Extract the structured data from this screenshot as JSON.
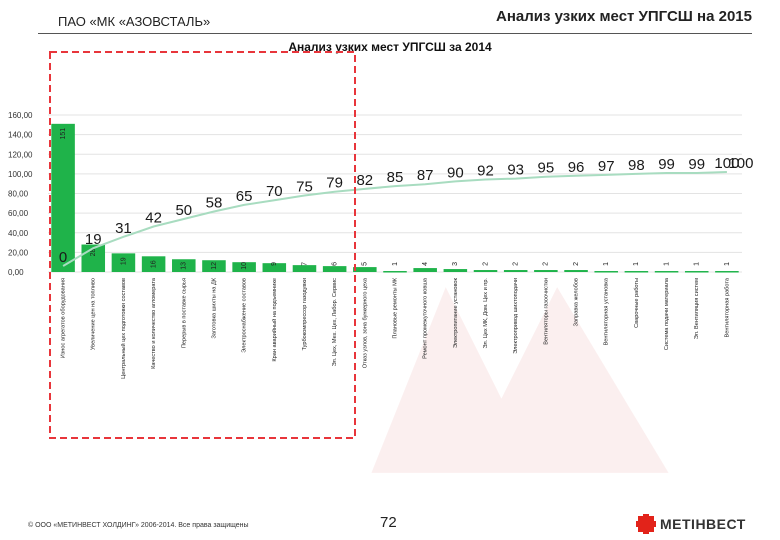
{
  "header": {
    "company": "ПАО «МК «АЗОВСТАЛЬ»",
    "title": "Анализ узких мест УПГСШ на 2015"
  },
  "footer": {
    "copyright": "© ООО «МЕТИНВЕСТ ХОЛДИНГ» 2006-2014. Все права защищены",
    "page_number": "72",
    "logo_text": "МЕТІНВЕСТ"
  },
  "colors": {
    "bar": "#1fb34a",
    "line": "#a8dcc0",
    "highlight_frame": "#e8353b"
  },
  "chart_data": {
    "type": "bar",
    "title": "Анализ узких мест УПГСШ за 2014",
    "y_ticks": [
      "0,00",
      "20,00",
      "40,00",
      "60,00",
      "80,00",
      "100,00",
      "120,00",
      "140,00",
      "160,00"
    ],
    "ylim": [
      0,
      160
    ],
    "cumulative_ylim": [
      0,
      100
    ],
    "categories": [
      "Износ агрегатов оборудования",
      "Увеличение цен на топливо",
      "Центральный цех подготовки составов",
      "Качество и количество агломерата",
      "Перерыв в поставке сырья",
      "Заготовка шихты на ДК",
      "Электроснабжение составов",
      "Кран аварийный на подъемнике",
      "Турбокомпрессор газодувки",
      "Эл. Цех, Мех. Цех, Лабор. Сервис",
      "Отказ узлов, зона бункерного цеха",
      "Плановые ремонты МК",
      "Ремонт промежуточного ковша",
      "Электропитание установок",
      "Эл. Цех МК, Дом. Цех и пр.",
      "Электропривод шихтоподачи",
      "Вентиляторы газоочистки",
      "Заправка желобов",
      "Вентиляторная установка",
      "Сварочные работы",
      "Система подачи материала",
      "Эл. Вентиляция систем",
      "Вентиляторная работа"
    ],
    "values": [
      151,
      28,
      19,
      16,
      13,
      12,
      10,
      9,
      7,
      6,
      5,
      1,
      4,
      3,
      2,
      2,
      2,
      2,
      1,
      1,
      1,
      1,
      1
    ],
    "cumulative": [
      0,
      19,
      31,
      42,
      50,
      58,
      65,
      70,
      75,
      79,
      82,
      85,
      87,
      90,
      92,
      93,
      95,
      96,
      97,
      98,
      99,
      99,
      100
    ],
    "cumulative_extra_label": "100"
  }
}
